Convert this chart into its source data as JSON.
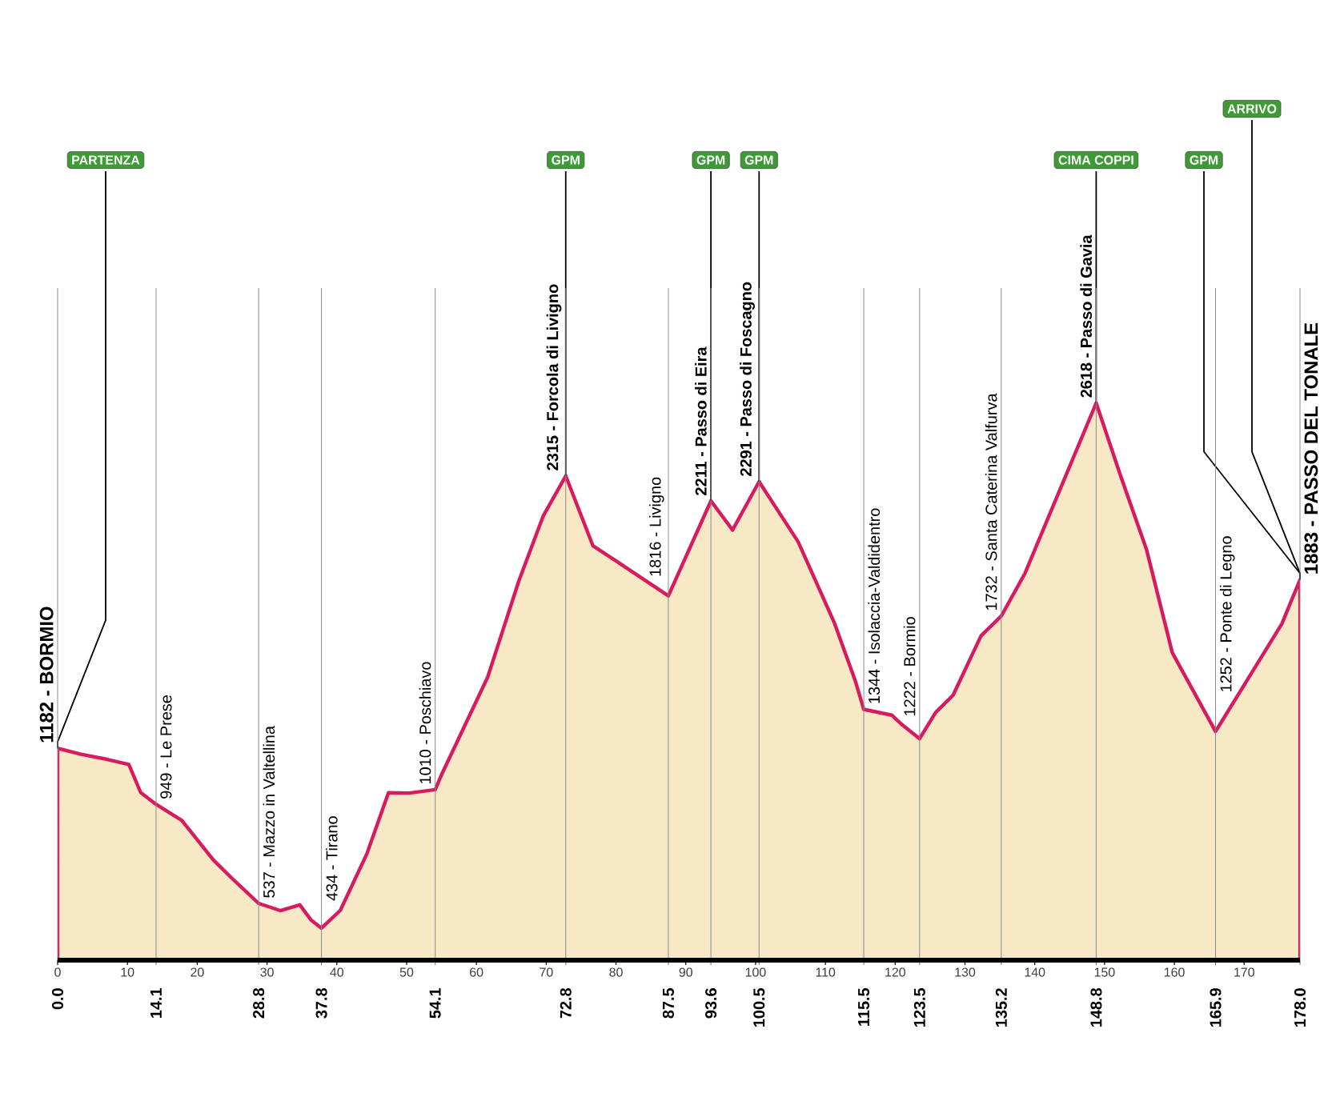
{
  "chart_data": {
    "type": "area",
    "color": "#f7e8c6",
    "x": [
      0,
      3.2,
      7.1,
      10.2,
      11.9,
      14.1,
      17.8,
      22.3,
      25.3,
      28.8,
      31.9,
      34.7,
      36.3,
      37.8,
      40.5,
      44.3,
      47.4,
      50.4,
      54.1,
      55.0,
      61.6,
      66.1,
      69.6,
      72.8,
      76.7,
      79.8,
      87.5,
      93.6,
      96.7,
      100.5,
      106.1,
      111.3,
      114.3,
      115.5,
      119.5,
      121.0,
      123.5,
      125.8,
      128.3,
      132.3,
      135.2,
      138.6,
      143.2,
      148.8,
      152.3,
      156.0,
      159.7,
      165.9,
      175.4,
      178.0
    ],
    "values": [
      1182,
      1158,
      1136,
      1115,
      998,
      949,
      882,
      718,
      632,
      537,
      507,
      531,
      468,
      434,
      508,
      743,
      997,
      996,
      1010,
      1072,
      1477,
      1880,
      2150,
      2315,
      2024,
      1965,
      1816,
      2211,
      2090,
      2291,
      2041,
      1703,
      1461,
      1344,
      1320,
      1280,
      1222,
      1331,
      1403,
      1650,
      1732,
      1910,
      2230,
      2618,
      2315,
      2010,
      1580,
      1252,
      1700,
      1883
    ],
    "value_labels": [
      "1182 - BORMIO",
      null,
      null,
      null,
      null,
      "949 - Le Prese",
      null,
      null,
      null,
      "537 - Mazzo in Valtellina",
      null,
      null,
      null,
      "434 - Tirano",
      null,
      null,
      null,
      null,
      "1010 - Poschiavo",
      null,
      null,
      null,
      null,
      "2315 - Forcola di Livigno",
      null,
      null,
      "1816 - Livigno",
      "2211 - Passo di Eira",
      null,
      "2291 - Passo di Foscagno",
      null,
      null,
      null,
      "1344 - Isolaccia-Valdidentro",
      null,
      null,
      "1222 - Bormio",
      null,
      null,
      null,
      "1732 - Santa Caterina Valfurva",
      null,
      null,
      "2618 - Passo di Gavia",
      null,
      null,
      null,
      "1252 - Ponte di Legno",
      null,
      "1883 - PASSO DEL TONALE"
    ],
    "annotations": [
      {
        "text": "PARTENZA",
        "x": 0,
        "y": 1182
      },
      {
        "text": "GPM",
        "x": 72.8,
        "y": 2315
      },
      {
        "text": "GPM",
        "x": 93.6,
        "y": 2211
      },
      {
        "text": "GPM",
        "x": 100.5,
        "y": 2291
      },
      {
        "text": "CIMA COPPI",
        "x": 148.8,
        "y": 2618
      },
      {
        "text": "GPM",
        "x": 178,
        "y": 1883
      },
      {
        "text": "ARRIVO",
        "x": 178,
        "y": 1883
      }
    ],
    "xlim": [
      0,
      178
    ],
    "xticks": [
      {
        "value": 0,
        "label": "0.0"
      },
      14.1,
      28.8,
      37.8,
      54.1,
      72.8,
      87.5,
      93.6,
      100.5,
      115.5,
      123.5,
      135.2,
      148.8,
      165.9,
      {
        "value": 178,
        "label": "178.0"
      }
    ],
    "x2lim": [
      0,
      178
    ],
    "x2ticks": [
      0,
      10,
      20,
      30,
      40,
      50,
      60,
      70,
      80,
      90,
      100,
      110,
      120,
      130,
      140,
      150,
      160,
      170
    ],
    "grid": "x",
    "tick_labels": "x"
  }
}
